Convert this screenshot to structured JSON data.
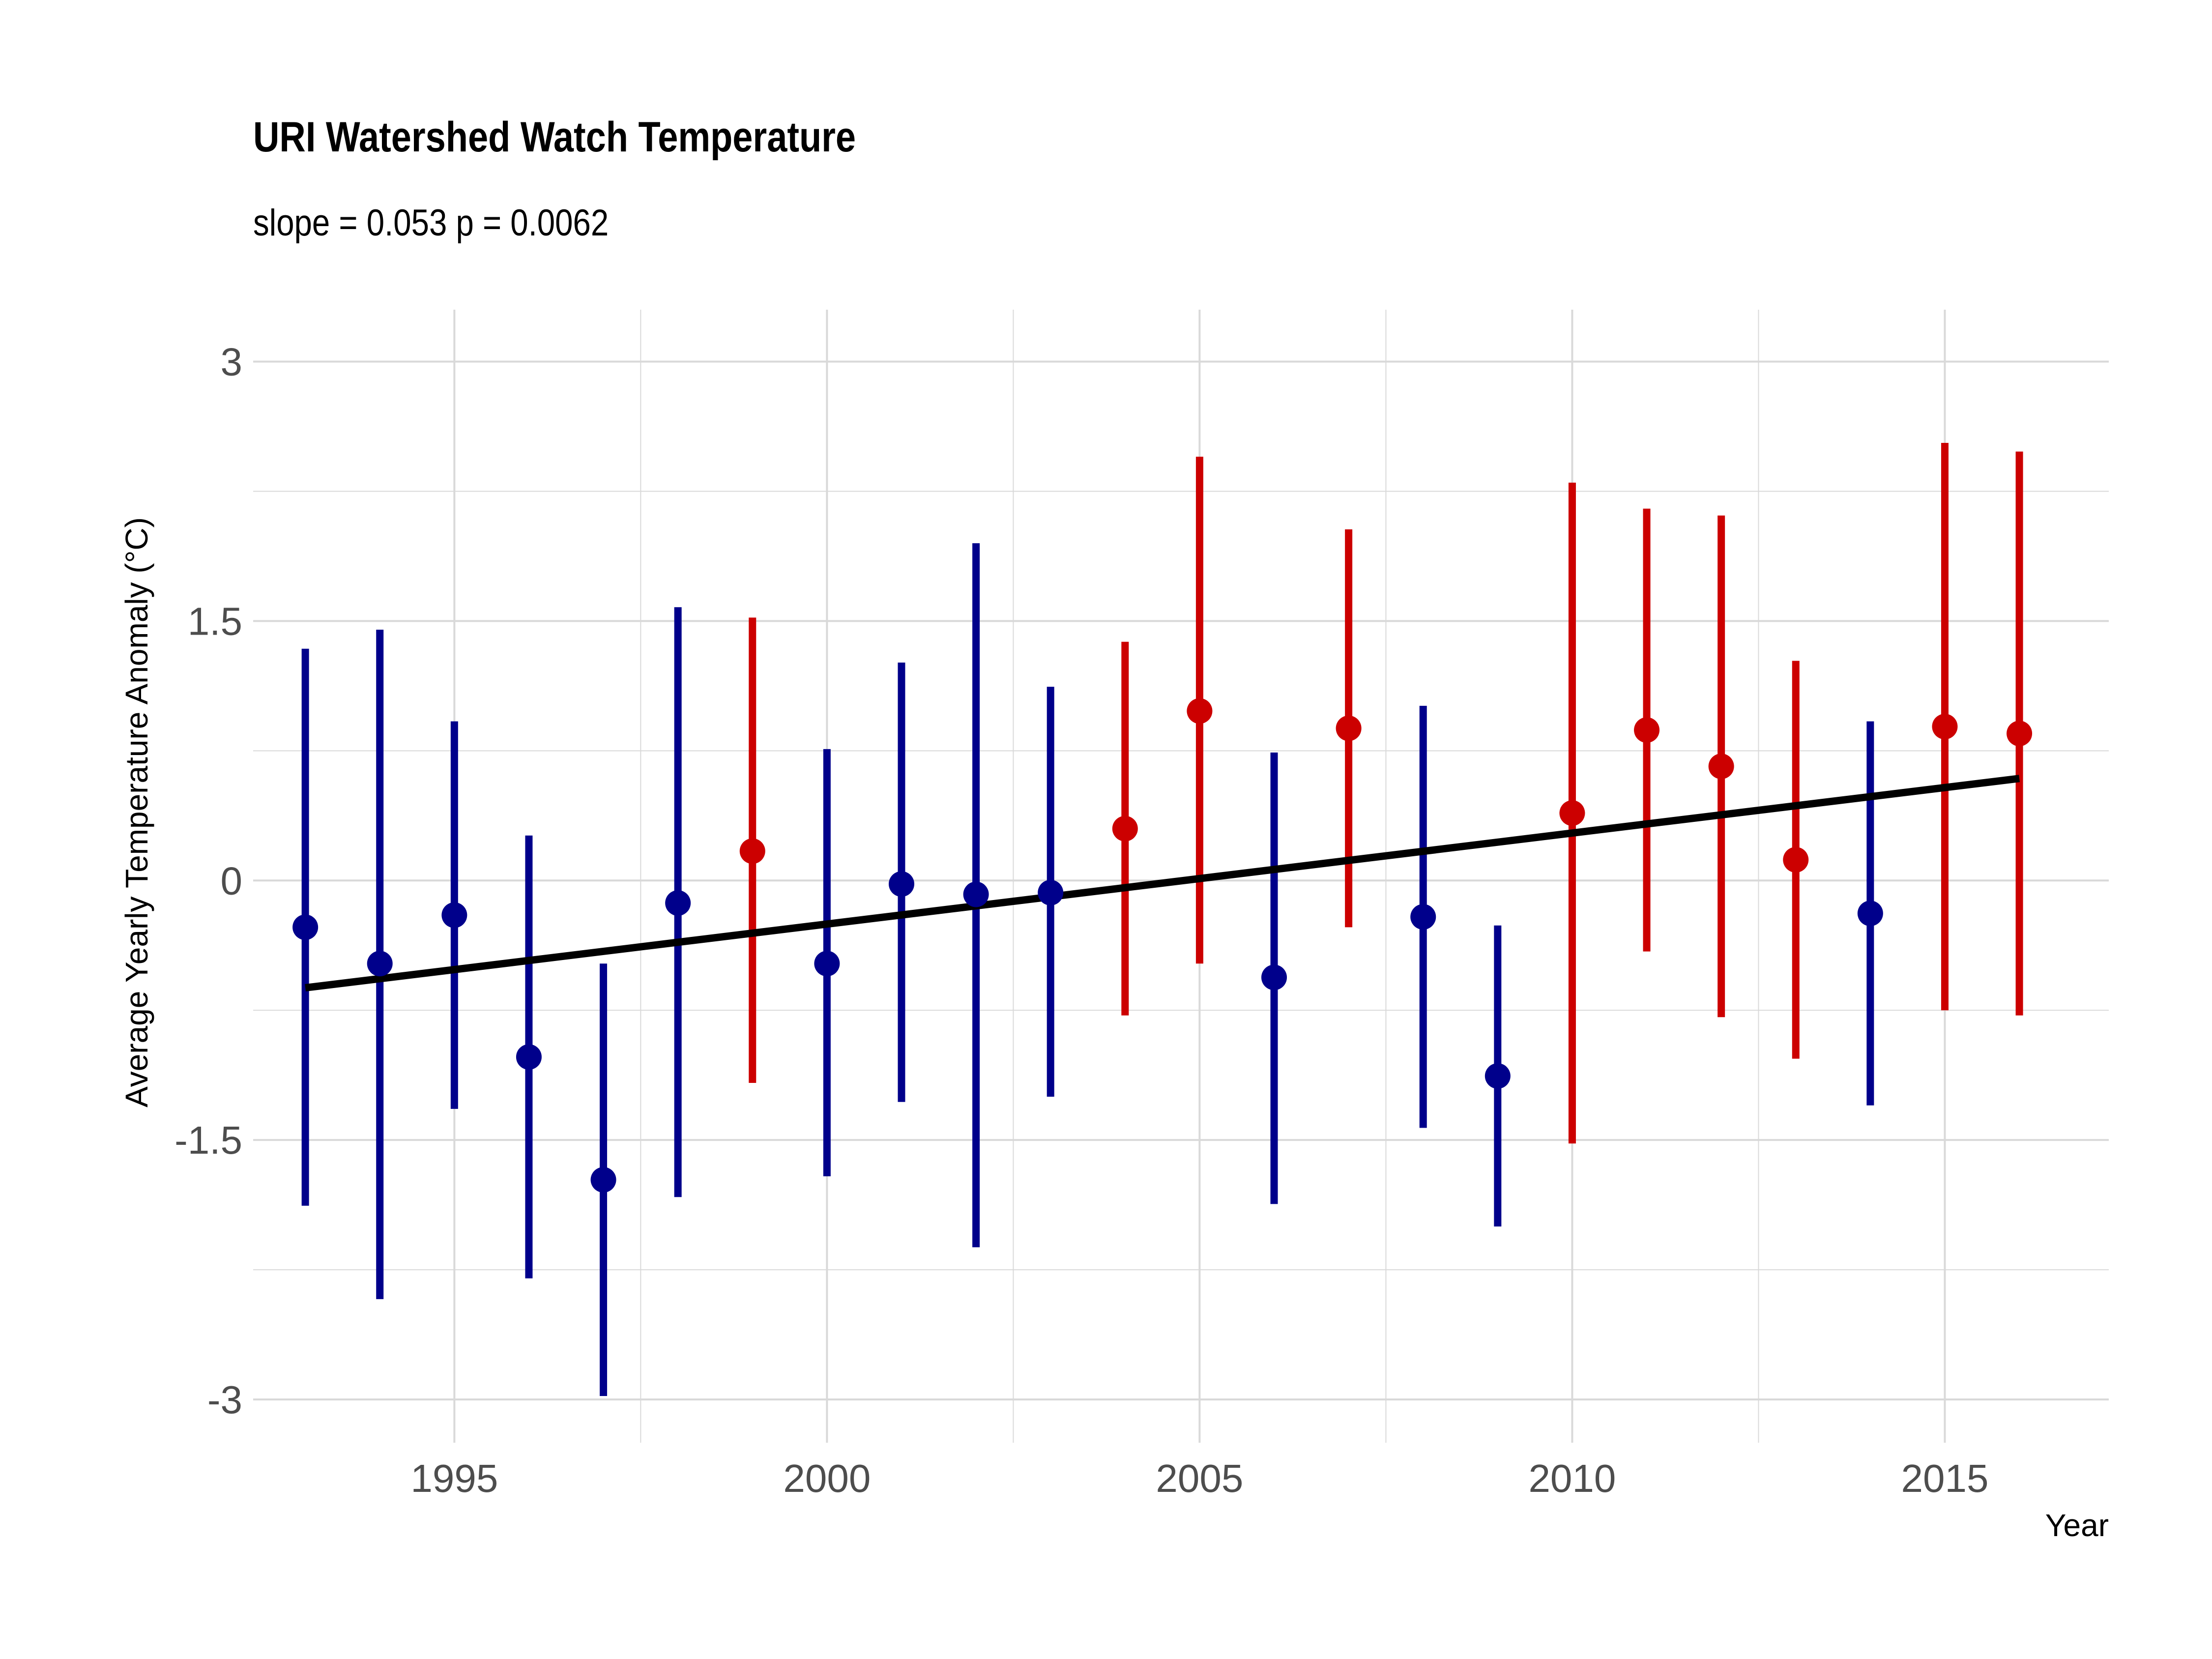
{
  "chart_data": {
    "type": "scatter",
    "title": "URI Watershed Watch Temperature",
    "subtitle": "slope = 0.053 p = 0.0062",
    "xlabel": "Year",
    "ylabel": "Average Yearly Temperature Anomaly (°C)",
    "xlim": [
      1992.3,
      2017.2
    ],
    "ylim": [
      -3.25,
      3.3
    ],
    "x_ticks": [
      1995,
      2000,
      2005,
      2010,
      2015
    ],
    "y_ticks": [
      3,
      1.5,
      0,
      -1.5,
      -3
    ],
    "y_tick_labels": [
      "3",
      "1.5",
      "0",
      "-1.5",
      "-3"
    ],
    "grid": true,
    "colors": {
      "below_mean": "#00008B",
      "above_mean": "#CC0000",
      "trend": "#000000",
      "grid": "#D9D9D9",
      "tick_text": "#4D4D4D"
    },
    "points": [
      {
        "year": 1993,
        "mean": -0.27,
        "low": -1.88,
        "high": 1.34,
        "group": "below_mean"
      },
      {
        "year": 1994,
        "mean": -0.48,
        "low": -2.42,
        "high": 1.45,
        "group": "below_mean"
      },
      {
        "year": 1995,
        "mean": -0.2,
        "low": -1.32,
        "high": 0.92,
        "group": "below_mean"
      },
      {
        "year": 1996,
        "mean": -1.02,
        "low": -2.3,
        "high": 0.26,
        "group": "below_mean"
      },
      {
        "year": 1997,
        "mean": -1.73,
        "low": -2.98,
        "high": -0.48,
        "group": "below_mean"
      },
      {
        "year": 1998,
        "mean": -0.13,
        "low": -1.83,
        "high": 1.58,
        "group": "below_mean"
      },
      {
        "year": 1999,
        "mean": 0.17,
        "low": -1.17,
        "high": 1.52,
        "group": "above_mean"
      },
      {
        "year": 2000,
        "mean": -0.48,
        "low": -1.71,
        "high": 0.76,
        "group": "below_mean"
      },
      {
        "year": 2001,
        "mean": -0.02,
        "low": -1.28,
        "high": 1.26,
        "group": "below_mean"
      },
      {
        "year": 2002,
        "mean": -0.08,
        "low": -2.12,
        "high": 1.95,
        "group": "below_mean"
      },
      {
        "year": 2003,
        "mean": -0.07,
        "low": -1.25,
        "high": 1.12,
        "group": "below_mean"
      },
      {
        "year": 2004,
        "mean": 0.3,
        "low": -0.78,
        "high": 1.38,
        "group": "above_mean"
      },
      {
        "year": 2005,
        "mean": 0.98,
        "low": -0.48,
        "high": 2.45,
        "group": "above_mean"
      },
      {
        "year": 2006,
        "mean": -0.56,
        "low": -1.87,
        "high": 0.74,
        "group": "below_mean"
      },
      {
        "year": 2007,
        "mean": 0.88,
        "low": -0.27,
        "high": 2.03,
        "group": "above_mean"
      },
      {
        "year": 2008,
        "mean": -0.21,
        "low": -1.43,
        "high": 1.01,
        "group": "below_mean"
      },
      {
        "year": 2009,
        "mean": -1.13,
        "low": -2.0,
        "high": -0.26,
        "group": "below_mean"
      },
      {
        "year": 2010,
        "mean": 0.39,
        "low": -1.52,
        "high": 2.3,
        "group": "above_mean"
      },
      {
        "year": 2011,
        "mean": 0.87,
        "low": -0.41,
        "high": 2.15,
        "group": "above_mean"
      },
      {
        "year": 2012,
        "mean": 0.66,
        "low": -0.79,
        "high": 2.11,
        "group": "above_mean"
      },
      {
        "year": 2013,
        "mean": 0.12,
        "low": -1.03,
        "high": 1.27,
        "group": "above_mean"
      },
      {
        "year": 2014,
        "mean": -0.19,
        "low": -1.3,
        "high": 0.92,
        "group": "below_mean"
      },
      {
        "year": 2015,
        "mean": 0.89,
        "low": -0.75,
        "high": 2.53,
        "group": "above_mean"
      },
      {
        "year": 2016,
        "mean": 0.85,
        "low": -0.78,
        "high": 2.48,
        "group": "above_mean"
      }
    ],
    "trend_line": {
      "x": [
        1993,
        2016
      ],
      "y": [
        -0.62,
        0.59
      ]
    }
  }
}
